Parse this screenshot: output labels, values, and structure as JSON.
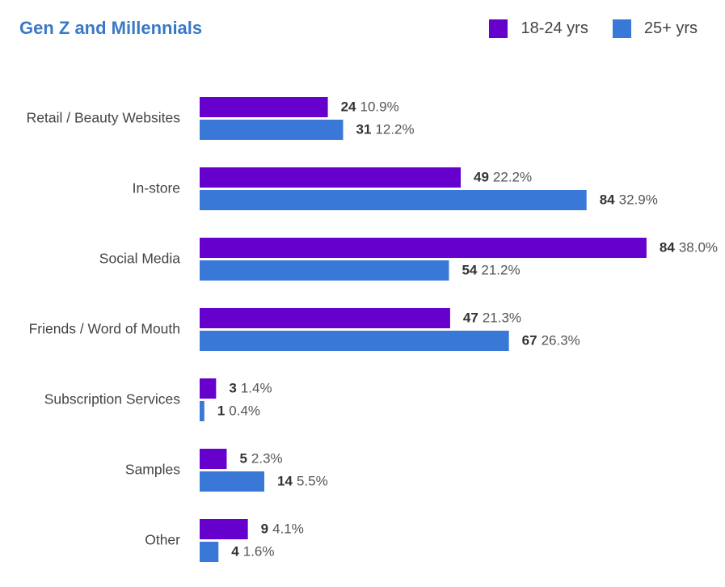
{
  "chart_data": {
    "type": "bar",
    "orientation": "horizontal",
    "title": "Gen Z and Millennials",
    "categories": [
      "Retail / Beauty Websites",
      "In-store",
      "Social Media",
      "Friends / Word of Mouth",
      "Subscription Services",
      "Samples",
      "Other"
    ],
    "series": [
      {
        "name": "18-24 yrs",
        "color": "#6600cc",
        "values": [
          24,
          49,
          84,
          47,
          3,
          5,
          9
        ],
        "percents": [
          "10.9%",
          "22.2%",
          "38.0%",
          "21.3%",
          "1.4%",
          "2.3%",
          "4.1%"
        ]
      },
      {
        "name": "25+ yrs",
        "color": "#3a78d8",
        "values": [
          31,
          84,
          54,
          67,
          1,
          14,
          4
        ],
        "percents": [
          "12.2%",
          "32.9%",
          "21.2%",
          "26.3%",
          "0.4%",
          "5.5%",
          "1.6%"
        ]
      }
    ],
    "bar_length_measure": "percent",
    "grid": false,
    "legend": "top-right"
  }
}
